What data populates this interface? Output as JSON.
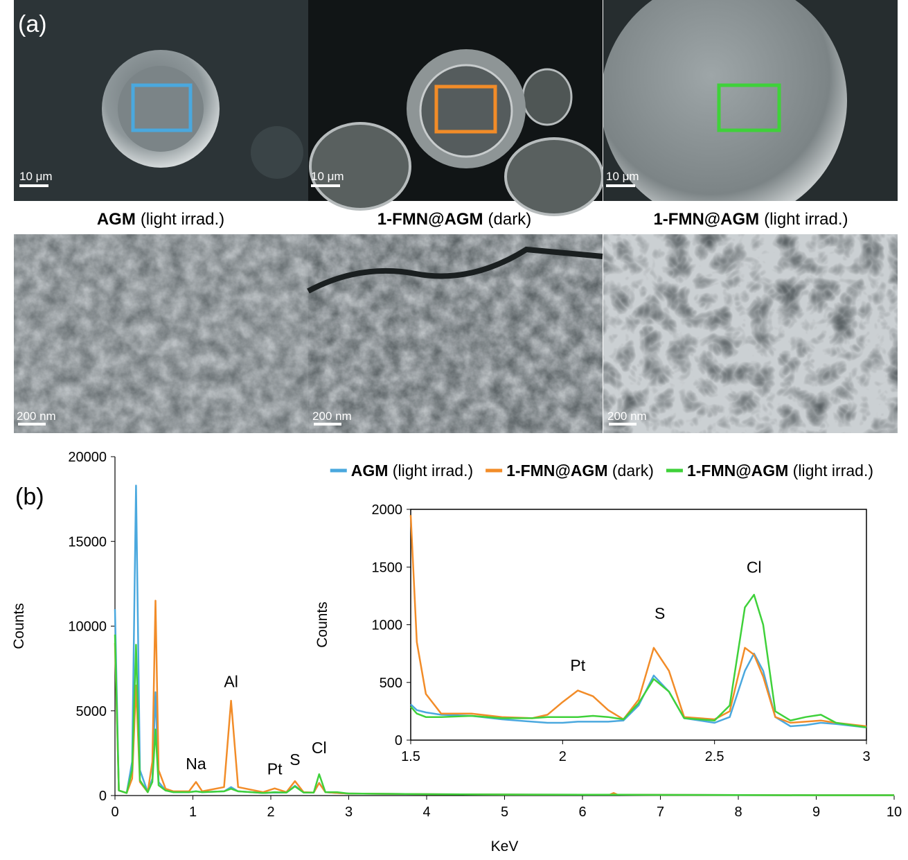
{
  "panel_a": {
    "label": "(a)",
    "top": [
      {
        "scale_bar": "10 μm",
        "caption": {
          "bold": "AGM",
          "rest": "(light irrad.)"
        }
      },
      {
        "scale_bar": "10 μm",
        "caption": {
          "bold": "1-FMN@AGM",
          "rest": "(dark)"
        }
      },
      {
        "scale_bar": "10 μm",
        "caption": {
          "bold": "1-FMN@AGM",
          "rest": "(light irrad.)"
        }
      }
    ],
    "bottom": [
      {
        "scale_bar": "200 nm"
      },
      {
        "scale_bar": "200 nm"
      },
      {
        "scale_bar": "200 nm"
      }
    ]
  },
  "chart_data": [
    {
      "type": "line",
      "panel_label": "(b)",
      "x_label": "KeV",
      "y_label": "Counts",
      "xlim": [
        0,
        10
      ],
      "ylim": [
        0,
        20000
      ],
      "xticks": [
        0,
        1,
        2,
        3,
        4,
        5,
        6,
        7,
        8,
        9,
        10
      ],
      "yticks": [
        0,
        5000,
        10000,
        15000,
        20000
      ],
      "legend": "top-right",
      "x": [
        0,
        0.05,
        0.15,
        0.22,
        0.27,
        0.32,
        0.42,
        0.48,
        0.52,
        0.56,
        0.65,
        0.75,
        0.95,
        1.04,
        1.12,
        1.4,
        1.49,
        1.58,
        1.9,
        2.05,
        2.2,
        2.31,
        2.42,
        2.55,
        2.62,
        2.7,
        2.85,
        3,
        4,
        5,
        6,
        6.35,
        6.4,
        6.45,
        7,
        8,
        9,
        10
      ],
      "series": [
        {
          "name": "AGM (light irrad.)",
          "color": "#4aa8de",
          "values": [
            11000,
            300,
            150,
            2000,
            18300,
            1500,
            200,
            1000,
            6100,
            800,
            300,
            200,
            200,
            250,
            200,
            250,
            500,
            250,
            150,
            180,
            170,
            580,
            180,
            170,
            750,
            200,
            150,
            120,
            80,
            60,
            50,
            50,
            50,
            50,
            40,
            30,
            20,
            20
          ]
        },
        {
          "name": "1-FMN@AGM (dark)",
          "color": "#f28c28",
          "values": [
            9000,
            300,
            150,
            1000,
            6500,
            800,
            200,
            2000,
            11500,
            1500,
            400,
            250,
            250,
            800,
            250,
            500,
            5600,
            500,
            200,
            420,
            200,
            850,
            200,
            180,
            740,
            200,
            150,
            120,
            80,
            60,
            50,
            50,
            150,
            50,
            40,
            30,
            20,
            20
          ]
        },
        {
          "name": "1-FMN@AGM (light irrad.)",
          "color": "#3fd13a",
          "values": [
            9500,
            300,
            150,
            1500,
            8900,
            900,
            200,
            800,
            3900,
            600,
            300,
            200,
            200,
            250,
            200,
            250,
            400,
            250,
            150,
            200,
            170,
            540,
            180,
            170,
            1260,
            200,
            200,
            120,
            80,
            60,
            50,
            50,
            50,
            50,
            40,
            30,
            20,
            20
          ]
        }
      ],
      "annotations": [
        {
          "text": "Na",
          "x": 1.04,
          "y": 1550
        },
        {
          "text": "Al",
          "x": 1.49,
          "y": 6400
        },
        {
          "text": "Pt",
          "x": 2.05,
          "y": 1250
        },
        {
          "text": "S",
          "x": 2.31,
          "y": 1800
        },
        {
          "text": "Cl",
          "x": 2.62,
          "y": 2500
        }
      ]
    },
    {
      "type": "line",
      "y_label": "Counts",
      "xlim": [
        1.5,
        3
      ],
      "ylim": [
        0,
        2000
      ],
      "xticks": [
        1.5,
        2,
        2.5,
        3
      ],
      "yticks": [
        0,
        500,
        1000,
        1500,
        2000
      ],
      "x": [
        1.5,
        1.52,
        1.55,
        1.6,
        1.7,
        1.8,
        1.9,
        1.95,
        2.0,
        2.05,
        2.1,
        2.15,
        2.2,
        2.25,
        2.3,
        2.35,
        2.4,
        2.5,
        2.55,
        2.6,
        2.63,
        2.66,
        2.7,
        2.75,
        2.8,
        2.85,
        2.9,
        3.0
      ],
      "series": [
        {
          "color": "#4aa8de",
          "values": [
            310,
            260,
            240,
            220,
            210,
            180,
            160,
            150,
            150,
            160,
            160,
            160,
            170,
            300,
            560,
            420,
            190,
            150,
            200,
            600,
            750,
            600,
            200,
            120,
            130,
            150,
            140,
            110
          ]
        },
        {
          "color": "#f28c28",
          "values": [
            1950,
            850,
            400,
            230,
            230,
            200,
            190,
            220,
            330,
            430,
            380,
            260,
            180,
            350,
            800,
            600,
            200,
            180,
            250,
            800,
            740,
            550,
            200,
            150,
            160,
            170,
            150,
            120
          ]
        },
        {
          "color": "#3fd13a",
          "values": [
            290,
            230,
            200,
            200,
            210,
            190,
            190,
            200,
            200,
            200,
            210,
            200,
            180,
            320,
            530,
            420,
            190,
            170,
            300,
            1150,
            1260,
            1000,
            250,
            170,
            200,
            220,
            150,
            110
          ]
        }
      ],
      "annotations": [
        {
          "text": "Pt",
          "x": 2.05,
          "y": 600
        },
        {
          "text": "S",
          "x": 2.32,
          "y": 1050
        },
        {
          "text": "Cl",
          "x": 2.63,
          "y": 1450
        }
      ]
    }
  ]
}
